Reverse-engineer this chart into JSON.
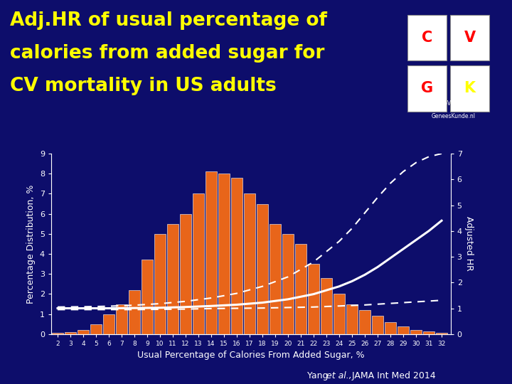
{
  "background_color": "#0d0d6b",
  "title_line1": "Adj.HR of usual percentage of",
  "title_line2": "calories from added sugar for",
  "title_line3": "CV mortality in US adults",
  "title_color": "#ffff00",
  "title_fontsize": 19,
  "xlabel": "Usual Percentage of Calories From Added Sugar, %",
  "xlabel_color": "#ffffff",
  "ylabel_left": "Percentage Distribution, %",
  "ylabel_right": "Adjusted HR",
  "axis_label_color": "#ffffff",
  "tick_color": "#ffffff",
  "bar_color": "#e8651a",
  "bar_edge_color": "#ffffff",
  "bar_categories": [
    2,
    3,
    4,
    5,
    6,
    7,
    8,
    9,
    10,
    11,
    12,
    13,
    14,
    15,
    16,
    17,
    18,
    19,
    20,
    21,
    22,
    23,
    24,
    25,
    26,
    27,
    28,
    29,
    30,
    31,
    32
  ],
  "bar_heights": [
    0.05,
    0.1,
    0.2,
    0.5,
    1.0,
    1.5,
    2.2,
    3.7,
    5.0,
    5.5,
    6.0,
    7.0,
    8.1,
    8.0,
    7.8,
    7.0,
    6.5,
    5.5,
    5.0,
    4.5,
    3.5,
    2.8,
    2.0,
    1.5,
    1.2,
    0.9,
    0.6,
    0.4,
    0.2,
    0.15,
    0.05
  ],
  "ylim_left": [
    0,
    9
  ],
  "ylim_right": [
    0,
    7
  ],
  "yticks_left": [
    0,
    1,
    2,
    3,
    4,
    5,
    6,
    7,
    8,
    9
  ],
  "yticks_right": [
    0,
    1,
    2,
    3,
    4,
    5,
    6,
    7
  ],
  "xticks": [
    2,
    3,
    4,
    5,
    6,
    7,
    8,
    9,
    10,
    11,
    12,
    13,
    14,
    15,
    16,
    17,
    18,
    19,
    20,
    21,
    22,
    23,
    24,
    25,
    26,
    27,
    28,
    29,
    30,
    31,
    32
  ],
  "hr_x": [
    2,
    4,
    6,
    8,
    10,
    12,
    14,
    16,
    18,
    20,
    22,
    24,
    25,
    26,
    27,
    28,
    29,
    30,
    31,
    32
  ],
  "hr_y": [
    1.0,
    1.0,
    1.0,
    1.01,
    1.02,
    1.05,
    1.09,
    1.14,
    1.22,
    1.35,
    1.55,
    1.85,
    2.05,
    2.3,
    2.6,
    2.95,
    3.3,
    3.65,
    4.0,
    4.4
  ],
  "hr_upper": [
    1.05,
    1.06,
    1.08,
    1.12,
    1.18,
    1.27,
    1.4,
    1.58,
    1.85,
    2.22,
    2.8,
    3.6,
    4.1,
    4.7,
    5.3,
    5.85,
    6.3,
    6.65,
    6.88,
    7.0
  ],
  "hr_lower": [
    0.95,
    0.95,
    0.95,
    0.95,
    0.96,
    0.97,
    0.99,
    1.0,
    1.01,
    1.03,
    1.05,
    1.09,
    1.11,
    1.13,
    1.16,
    1.19,
    1.22,
    1.25,
    1.28,
    1.31
  ],
  "line_color": "#ffffff",
  "ci_color": "#ffffff",
  "citation_color": "#ffffff"
}
